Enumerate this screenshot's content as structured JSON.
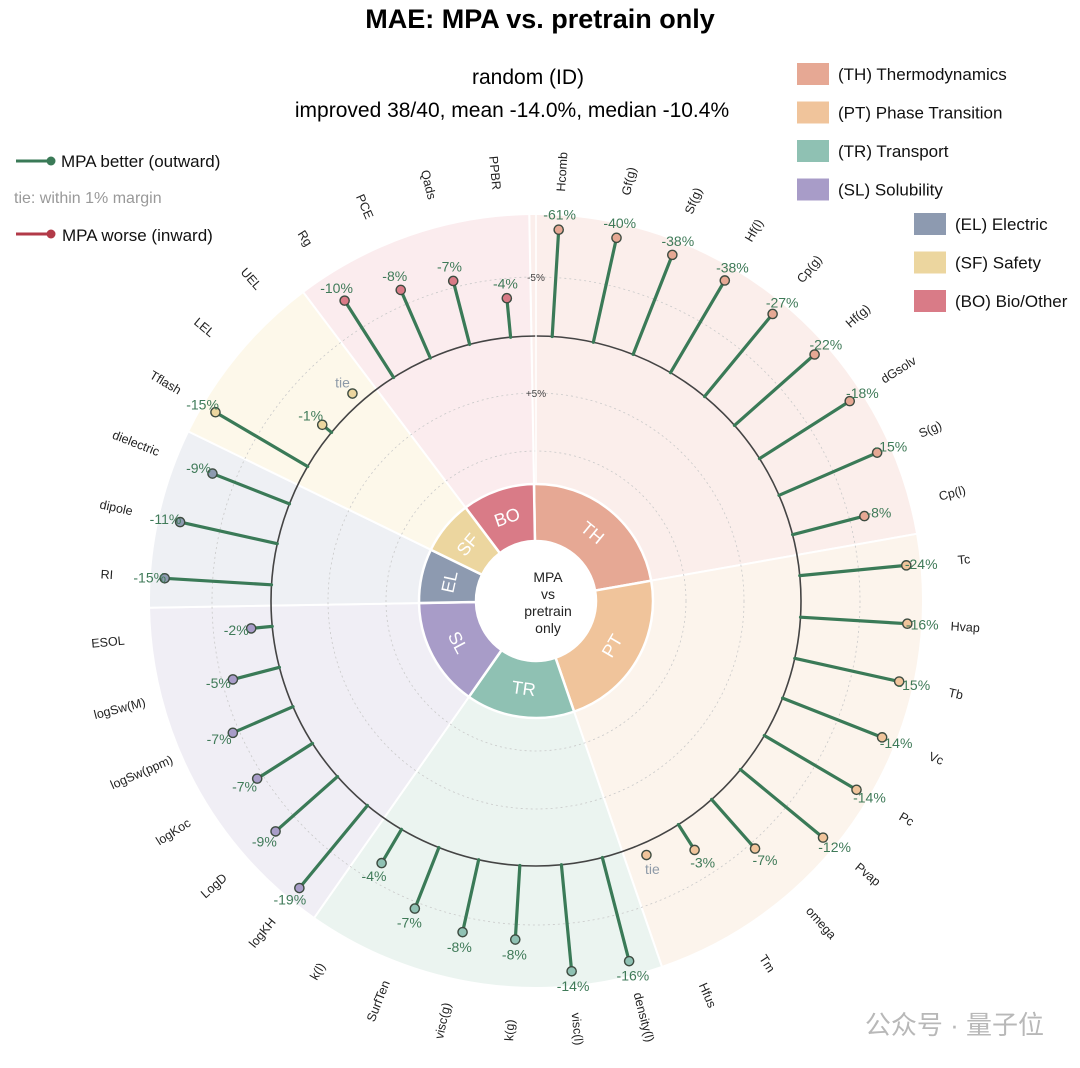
{
  "watermark": "公众号 · 量子位",
  "chart_data": {
    "type": "radial-lollipop",
    "title": "MAE: MPA vs. pretrain only",
    "subtitle_line1": "random (ID)",
    "subtitle_line2": "improved 38/40, mean -14.0%, median -10.4%",
    "center_label": [
      "MPA",
      "vs",
      "pretrain",
      "only"
    ],
    "direction_legend": {
      "better": "MPA better (outward)",
      "tie": "tie: within 1% margin",
      "worse": "MPA worse (inward)",
      "better_color": "#3a7a57",
      "worse_color": "#b23a48"
    },
    "rings": {
      "inner_tick": "+5%",
      "outer_tick": "-5%"
    },
    "tie_text": "tie",
    "categories": [
      {
        "code": "TH",
        "name": "(TH) Thermodynamics",
        "color": "#e6a894",
        "bg": "#fbeeeb"
      },
      {
        "code": "PT",
        "name": "(PT) Phase Transition",
        "color": "#f0c49b",
        "bg": "#fcf4ec"
      },
      {
        "code": "TR",
        "name": "(TR) Transport",
        "color": "#8fc1b3",
        "bg": "#ebf4f0"
      },
      {
        "code": "SL",
        "name": "(SL) Solubility",
        "color": "#a89cc8",
        "bg": "#f0eef5"
      },
      {
        "code": "EL",
        "name": "(EL) Electric",
        "color": "#8d9ab0",
        "bg": "#eef0f4"
      },
      {
        "code": "SF",
        "name": "(SF) Safety",
        "color": "#ecd69f",
        "bg": "#fdf8ea"
      },
      {
        "code": "BO",
        "name": "(BO) Bio/Other",
        "color": "#d97b87",
        "bg": "#fbecee"
      }
    ],
    "properties": [
      {
        "name": "Hcomb",
        "cat": "TH",
        "value": -61,
        "label": "-61%"
      },
      {
        "name": "Gf(g)",
        "cat": "TH",
        "value": -40,
        "label": "-40%"
      },
      {
        "name": "Sf(g)",
        "cat": "TH",
        "value": -38,
        "label": "-38%"
      },
      {
        "name": "Hf(l)",
        "cat": "TH",
        "value": -38,
        "label": "-38%"
      },
      {
        "name": "Cp(g)",
        "cat": "TH",
        "value": -27,
        "label": "-27%"
      },
      {
        "name": "Hf(g)",
        "cat": "TH",
        "value": -22,
        "label": "-22%"
      },
      {
        "name": "dGsolv",
        "cat": "TH",
        "value": -18,
        "label": "-18%"
      },
      {
        "name": "S(g)",
        "cat": "TH",
        "value": -15,
        "label": "-15%"
      },
      {
        "name": "Cp(l)",
        "cat": "TH",
        "value": -8,
        "label": "-8%"
      },
      {
        "name": "Tc",
        "cat": "PT",
        "value": -24,
        "label": "-24%"
      },
      {
        "name": "Hvap",
        "cat": "PT",
        "value": -16,
        "label": "-16%"
      },
      {
        "name": "Tb",
        "cat": "PT",
        "value": -15,
        "label": "-15%"
      },
      {
        "name": "Vc",
        "cat": "PT",
        "value": -14,
        "label": "-14%"
      },
      {
        "name": "Pc",
        "cat": "PT",
        "value": -14,
        "label": "-14%"
      },
      {
        "name": "Pvap",
        "cat": "PT",
        "value": -12,
        "label": "-12%"
      },
      {
        "name": "omega",
        "cat": "PT",
        "value": -7,
        "label": "-7%"
      },
      {
        "name": "Tm",
        "cat": "PT",
        "value": -3,
        "label": "-3%"
      },
      {
        "name": "Hfus",
        "cat": "PT",
        "value": -0.5,
        "label": "tie"
      },
      {
        "name": "density(l)",
        "cat": "TR",
        "value": -16,
        "label": "-16%"
      },
      {
        "name": "visc(l)",
        "cat": "TR",
        "value": -14,
        "label": "-14%"
      },
      {
        "name": "k(g)",
        "cat": "TR",
        "value": -8,
        "label": "-8%"
      },
      {
        "name": "visc(g)",
        "cat": "TR",
        "value": -8,
        "label": "-8%"
      },
      {
        "name": "SurfTen",
        "cat": "TR",
        "value": -7,
        "label": "-7%"
      },
      {
        "name": "k(l)",
        "cat": "TR",
        "value": -4,
        "label": "-4%"
      },
      {
        "name": "logKH",
        "cat": "SL",
        "value": -19,
        "label": "-19%"
      },
      {
        "name": "LogD",
        "cat": "SL",
        "value": -9,
        "label": "-9%"
      },
      {
        "name": "logKoc",
        "cat": "SL",
        "value": -7,
        "label": "-7%"
      },
      {
        "name": "logSw(ppm)",
        "cat": "SL",
        "value": -7,
        "label": "-7%"
      },
      {
        "name": "logSw(M)",
        "cat": "SL",
        "value": -5,
        "label": "-5%"
      },
      {
        "name": "ESOL",
        "cat": "SL",
        "value": -2,
        "label": "-2%"
      },
      {
        "name": "RI",
        "cat": "EL",
        "value": -15,
        "label": "-15%"
      },
      {
        "name": "dipole",
        "cat": "EL",
        "value": -11,
        "label": "-11%"
      },
      {
        "name": "dielectric",
        "cat": "EL",
        "value": -9,
        "label": "-9%"
      },
      {
        "name": "Tflash",
        "cat": "SF",
        "value": -15,
        "label": "-15%"
      },
      {
        "name": "LEL",
        "cat": "SF",
        "value": -1,
        "label": "-1%"
      },
      {
        "name": "UEL",
        "cat": "SF",
        "value": -0.5,
        "label": "tie"
      },
      {
        "name": "Rg",
        "cat": "BO",
        "value": -10,
        "label": "-10%"
      },
      {
        "name": "PCE",
        "cat": "BO",
        "value": -8,
        "label": "-8%"
      },
      {
        "name": "Qads",
        "cat": "BO",
        "value": -7,
        "label": "-7%"
      },
      {
        "name": "PPBR",
        "cat": "BO",
        "value": -4,
        "label": "-4%"
      }
    ]
  }
}
